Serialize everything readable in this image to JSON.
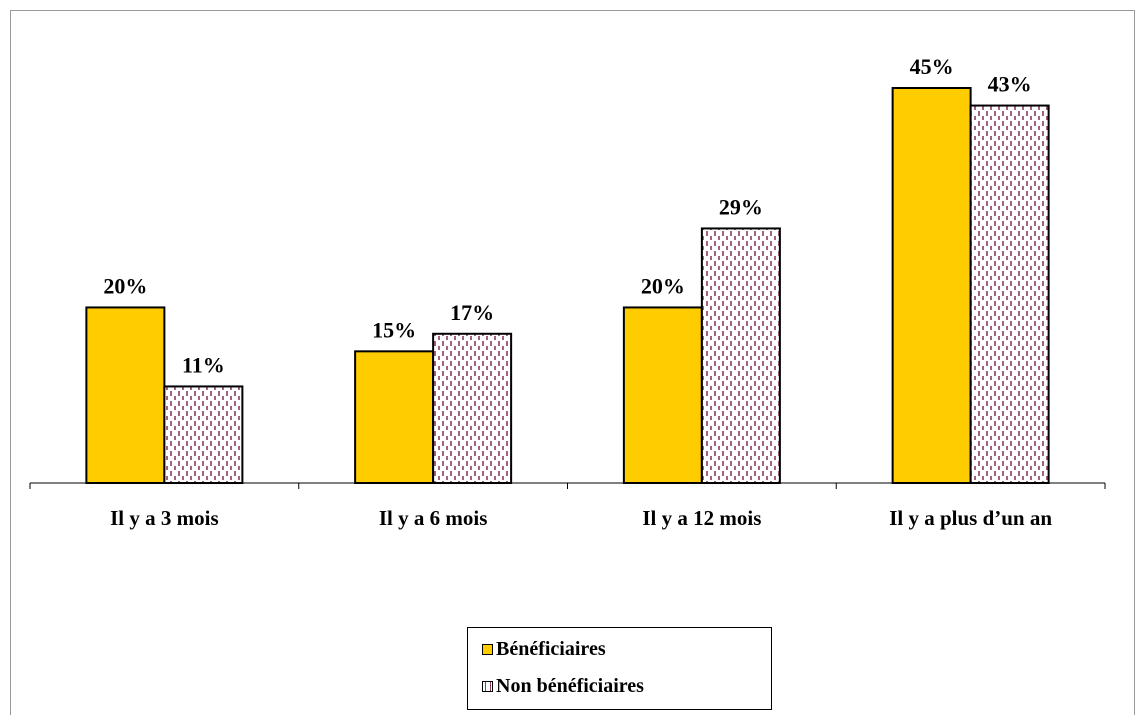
{
  "chart_data": {
    "type": "bar",
    "categories": [
      "Il y a 3 mois",
      "Il y a 6 mois",
      "Il y a 12 mois",
      "Il y a plus d’un an"
    ],
    "series": [
      {
        "name": "Bénéficiaires",
        "values": [
          20,
          15,
          20,
          45
        ],
        "labels": [
          "20%",
          "15%",
          "20%",
          "45%"
        ],
        "color": "#FFCC00",
        "pattern": "solid"
      },
      {
        "name": "Non bénéficiaires",
        "values": [
          11,
          17,
          29,
          43
        ],
        "labels": [
          "11%",
          "17%",
          "29%",
          "43%"
        ],
        "color": "#ffffff",
        "pattern": "dotted-dashes",
        "pattern_color": "#8b3a62"
      }
    ],
    "ylim": [
      0,
      45
    ],
    "grid": false,
    "legend_position": "bottom-center"
  }
}
